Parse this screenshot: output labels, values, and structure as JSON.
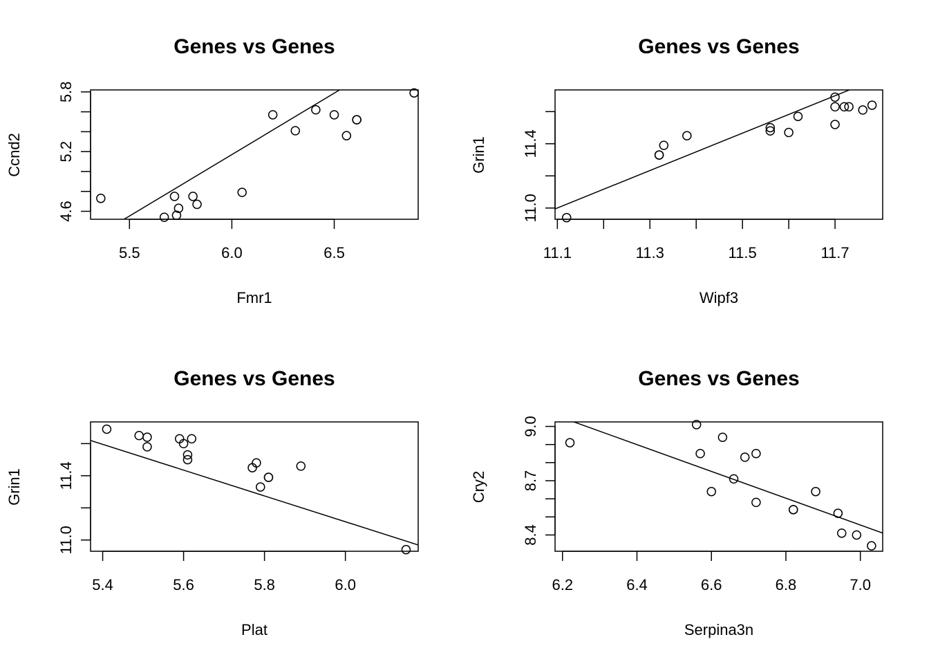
{
  "chart_data": [
    {
      "type": "scatter",
      "title": "Genes vs Genes",
      "xlabel": "Fmr1",
      "ylabel": "Ccnd2",
      "xlim": [
        5.31,
        6.91
      ],
      "ylim": [
        4.52,
        5.82
      ],
      "xticks": [
        5.5,
        6.0,
        6.5
      ],
      "xtick_labels": [
        "5.5",
        "6.0",
        "6.5"
      ],
      "yticks": [
        4.6,
        4.8,
        5.0,
        5.2,
        5.4,
        5.6,
        5.8
      ],
      "ytick_labels": [
        "4.6",
        "",
        "",
        "5.2",
        "",
        "",
        "5.8"
      ],
      "points": [
        {
          "x": 5.36,
          "y": 4.73
        },
        {
          "x": 5.67,
          "y": 4.54
        },
        {
          "x": 5.72,
          "y": 4.75
        },
        {
          "x": 5.73,
          "y": 4.56
        },
        {
          "x": 5.74,
          "y": 4.63
        },
        {
          "x": 5.81,
          "y": 4.75
        },
        {
          "x": 5.83,
          "y": 4.67
        },
        {
          "x": 6.05,
          "y": 4.79
        },
        {
          "x": 6.2,
          "y": 5.57
        },
        {
          "x": 6.31,
          "y": 5.41
        },
        {
          "x": 6.41,
          "y": 5.62
        },
        {
          "x": 6.5,
          "y": 5.57
        },
        {
          "x": 6.56,
          "y": 5.36
        },
        {
          "x": 6.61,
          "y": 5.52
        },
        {
          "x": 6.61,
          "y": 5.52
        },
        {
          "x": 6.89,
          "y": 5.79
        }
      ],
      "fit_line": {
        "intercept": -2.24,
        "slope": 1.235
      },
      "grid": false
    },
    {
      "type": "scatter",
      "title": "Genes vs Genes",
      "xlabel": "Wipf3",
      "ylabel": "Grin1",
      "xlim": [
        11.095,
        11.803
      ],
      "ylim": [
        10.93,
        11.735
      ],
      "xticks": [
        11.1,
        11.2,
        11.3,
        11.4,
        11.5,
        11.6,
        11.7
      ],
      "xtick_labels": [
        "11.1",
        "",
        "11.3",
        "",
        "11.5",
        "",
        "11.7"
      ],
      "yticks": [
        11.0,
        11.2,
        11.4,
        11.6
      ],
      "ytick_labels": [
        "11.0",
        "",
        "11.4",
        ""
      ],
      "points": [
        {
          "x": 11.12,
          "y": 10.94
        },
        {
          "x": 11.32,
          "y": 11.33
        },
        {
          "x": 11.32,
          "y": 11.33
        },
        {
          "x": 11.33,
          "y": 11.39
        },
        {
          "x": 11.38,
          "y": 11.45
        },
        {
          "x": 11.56,
          "y": 11.48
        },
        {
          "x": 11.56,
          "y": 11.5
        },
        {
          "x": 11.6,
          "y": 11.47
        },
        {
          "x": 11.62,
          "y": 11.57
        },
        {
          "x": 11.7,
          "y": 11.69
        },
        {
          "x": 11.7,
          "y": 11.63
        },
        {
          "x": 11.7,
          "y": 11.52
        },
        {
          "x": 11.72,
          "y": 11.63
        },
        {
          "x": 11.73,
          "y": 11.63
        },
        {
          "x": 11.76,
          "y": 11.61
        },
        {
          "x": 11.78,
          "y": 11.64
        }
      ],
      "fit_line": {
        "intercept": -1.92,
        "slope": 1.164
      },
      "grid": false
    },
    {
      "type": "scatter",
      "title": "Genes vs Genes",
      "xlabel": "Plat",
      "ylabel": "Grin1",
      "xlim": [
        5.37,
        6.18
      ],
      "ylim": [
        10.93,
        11.735
      ],
      "xticks": [
        5.4,
        5.6,
        5.8,
        6.0
      ],
      "xtick_labels": [
        "5.4",
        "5.6",
        "5.8",
        "6.0"
      ],
      "yticks": [
        11.0,
        11.2,
        11.4,
        11.6
      ],
      "ytick_labels": [
        "11.0",
        "",
        "11.4",
        ""
      ],
      "points": [
        {
          "x": 5.41,
          "y": 11.69
        },
        {
          "x": 5.49,
          "y": 11.65
        },
        {
          "x": 5.51,
          "y": 11.64
        },
        {
          "x": 5.51,
          "y": 11.58
        },
        {
          "x": 5.59,
          "y": 11.63
        },
        {
          "x": 5.6,
          "y": 11.6
        },
        {
          "x": 5.61,
          "y": 11.53
        },
        {
          "x": 5.61,
          "y": 11.5
        },
        {
          "x": 5.62,
          "y": 11.63
        },
        {
          "x": 5.77,
          "y": 11.45
        },
        {
          "x": 5.78,
          "y": 11.48
        },
        {
          "x": 5.79,
          "y": 11.33
        },
        {
          "x": 5.81,
          "y": 11.39
        },
        {
          "x": 5.81,
          "y": 11.39
        },
        {
          "x": 5.89,
          "y": 11.46
        },
        {
          "x": 6.15,
          "y": 10.94
        }
      ],
      "fit_line": {
        "intercept": 15.93,
        "slope": -0.8027
      },
      "grid": false
    },
    {
      "type": "scatter",
      "title": "Genes vs Genes",
      "xlabel": "Serpina3n",
      "ylabel": "Cry2",
      "xlim": [
        6.18,
        7.06
      ],
      "ylim": [
        8.31,
        9.025
      ],
      "xticks": [
        6.2,
        6.4,
        6.6,
        6.8,
        7.0
      ],
      "xtick_labels": [
        "6.2",
        "6.4",
        "6.6",
        "6.8",
        "7.0"
      ],
      "yticks": [
        8.4,
        8.5,
        8.6,
        8.7,
        8.8,
        8.9,
        9.0
      ],
      "ytick_labels": [
        "8.4",
        "",
        "",
        "8.7",
        "",
        "",
        "9.0"
      ],
      "points": [
        {
          "x": 6.22,
          "y": 8.91
        },
        {
          "x": 6.56,
          "y": 9.01
        },
        {
          "x": 6.57,
          "y": 8.85
        },
        {
          "x": 6.6,
          "y": 8.64
        },
        {
          "x": 6.63,
          "y": 8.94
        },
        {
          "x": 6.66,
          "y": 8.71
        },
        {
          "x": 6.69,
          "y": 8.83
        },
        {
          "x": 6.72,
          "y": 8.58
        },
        {
          "x": 6.72,
          "y": 8.85
        },
        {
          "x": 6.82,
          "y": 8.54
        },
        {
          "x": 6.82,
          "y": 8.54
        },
        {
          "x": 6.88,
          "y": 8.64
        },
        {
          "x": 6.94,
          "y": 8.52
        },
        {
          "x": 6.95,
          "y": 8.41
        },
        {
          "x": 6.99,
          "y": 8.4
        },
        {
          "x": 7.03,
          "y": 8.34
        }
      ],
      "fit_line": {
        "intercept": 13.64,
        "slope": -0.7407
      },
      "grid": false
    }
  ]
}
